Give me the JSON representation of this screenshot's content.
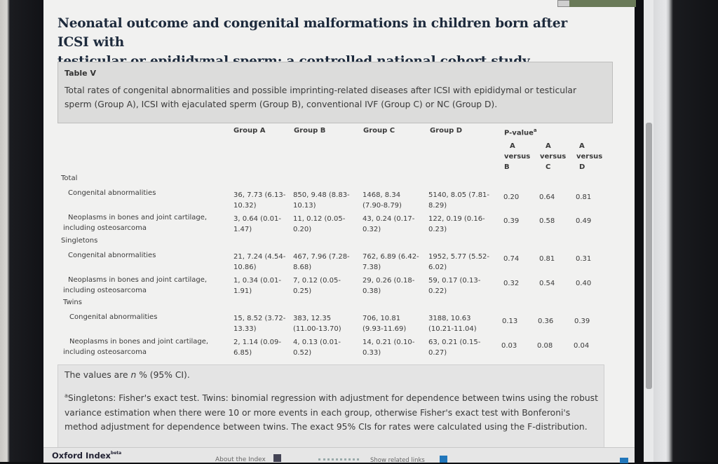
{
  "article": {
    "title_line1": "Neonatal outcome and congenital malformations in children born after ICSI with",
    "title_line2": "testicular or epididymal sperm: a controlled national cohort study"
  },
  "table": {
    "label": "Table V",
    "caption_line1": "Total rates of congenital abnormalities and possible imprinting-related diseases after ICSI with epididymal or testicular",
    "caption_line2": "sperm (Group A), ICSI with ejaculated sperm (Group B), conventional IVF (Group C) or NC (Group D).",
    "headers": {
      "group_a": "Group A",
      "group_b": "Group B",
      "group_c": "Group C",
      "group_d": "Group D",
      "p_value": "P-value",
      "p_value_sup": "a",
      "avb": [
        "A",
        "versus",
        "B"
      ],
      "avc": [
        "A",
        "versus",
        "C"
      ],
      "avd": [
        "A",
        "versus",
        "D"
      ]
    },
    "sections": [
      {
        "name": "Total",
        "rows": [
          {
            "label": [
              "Congenital abnormalities"
            ],
            "a": [
              "36, 7.73 (6.13-",
              "10.32)"
            ],
            "b": [
              "850, 9.48 (8.83-",
              "10.13)"
            ],
            "c": [
              "1468, 8.34",
              "(7.90-8.79)"
            ],
            "d": [
              "5140, 8.05 (7.81-",
              "8.29)"
            ],
            "p": [
              "0.20",
              "0.64",
              "0.81"
            ]
          },
          {
            "label": [
              "Neoplasms in bones and joint cartilage,",
              "including osteosarcoma"
            ],
            "a": [
              "3, 0.64 (0.01-",
              "1.47)"
            ],
            "b": [
              "11, 0.12 (0.05-",
              "0.20)"
            ],
            "c": [
              "43, 0.24 (0.17-",
              "0.32)"
            ],
            "d": [
              "122, 0.19 (0.16-",
              "0.23)"
            ],
            "p": [
              "0.39",
              "0.58",
              "0.49"
            ]
          }
        ]
      },
      {
        "name": "Singletons",
        "rows": [
          {
            "label": [
              "Congenital abnormalities"
            ],
            "a": [
              "21, 7.24 (4.54-",
              "10.86)"
            ],
            "b": [
              "467, 7.96 (7.28-",
              "8.68)"
            ],
            "c": [
              "762, 6.89 (6.42-",
              "7.38)"
            ],
            "d": [
              "1952, 5.77 (5.52-",
              "6.02)"
            ],
            "p": [
              "0.74",
              "0.81",
              "0.31"
            ]
          },
          {
            "label": [
              "Neoplasms in bones and joint cartilage,",
              "including osteosarcoma"
            ],
            "a": [
              "1, 0.34 (0.01-",
              "1.91)"
            ],
            "b": [
              "7, 0.12 (0.05-",
              "0.25)"
            ],
            "c": [
              "29, 0.26 (0.18-",
              "0.38)"
            ],
            "d": [
              "59, 0.17 (0.13-",
              "0.22)"
            ],
            "p": [
              "0.32",
              "0.54",
              "0.40"
            ]
          }
        ]
      },
      {
        "name": "Twins",
        "rows": [
          {
            "label": [
              "Congenital abnormalities"
            ],
            "a": [
              "15, 8.52 (3.72-",
              "13.33)"
            ],
            "b": [
              "383, 12.35",
              "(11.00-13.70)"
            ],
            "c": [
              "706, 10.81",
              "(9.93-11.69)"
            ],
            "d": [
              "3188, 10.63",
              "(10.21-11.04)"
            ],
            "p": [
              "0.13",
              "0.36",
              "0.39"
            ]
          },
          {
            "label": [
              "Neoplasms in bones and joint cartilage,",
              "including osteosarcoma"
            ],
            "a": [
              "2, 1.14 (0.09-",
              "6.85)"
            ],
            "b": [
              "4, 0.13 (0.01-",
              "0.52)"
            ],
            "c": [
              "14, 0.21 (0.10-",
              "0.33)"
            ],
            "d": [
              "63, 0.21 (0.15-",
              "0.27)"
            ],
            "p": [
              "0.03",
              "0.08",
              "0.04"
            ]
          }
        ]
      }
    ],
    "footnote_values_pre": "The values are ",
    "footnote_values_n": "n",
    "footnote_values_post": " % (95% CI).",
    "footnote_a_sup": "a",
    "footnote_a": "Singletons: Fisher's exact test. Twins: binomial regression with adjustment for dependence between twins using the robust variance estimation when there were 10 or more events in each group, otherwise Fisher's exact test with Bonferoni's method adjustment for dependence between twins. The exact 95% CIs for rates were calculated using the F-distribution."
  },
  "bottom_bar": {
    "brand": "Oxford Index",
    "brand_tm": "beta",
    "about": "About the Index",
    "show_related": "Show related links"
  }
}
